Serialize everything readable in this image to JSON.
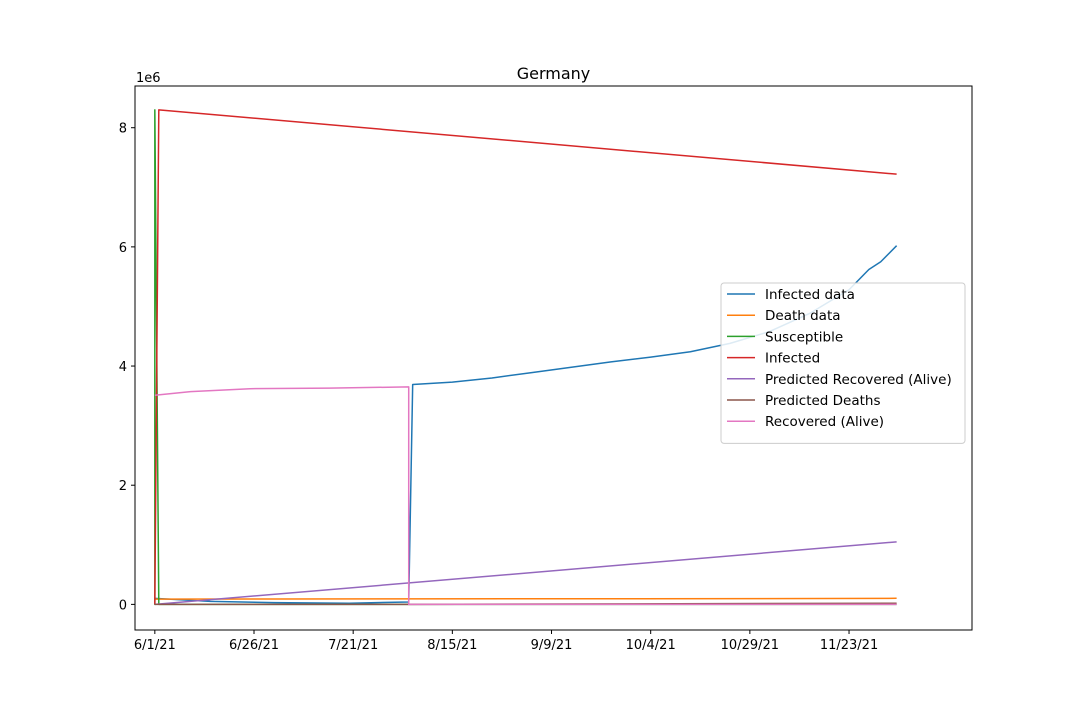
{
  "chart_data": {
    "type": "line",
    "title": "Germany",
    "xlabel": "",
    "ylabel": "",
    "y_offset_label": "1e6",
    "x_tick_labels": [
      "6/1/21",
      "6/26/21",
      "7/21/21",
      "8/15/21",
      "9/9/21",
      "10/4/21",
      "10/29/21",
      "11/23/21"
    ],
    "x_ticks": [
      "2021-06-01",
      "2021-06-26",
      "2021-07-21",
      "2021-08-15",
      "2021-09-09",
      "2021-10-04",
      "2021-10-29",
      "2021-11-23"
    ],
    "xlim": [
      "2021-05-27",
      "2021-12-24"
    ],
    "y_tick_values": [
      0,
      2,
      4,
      6,
      8
    ],
    "y_tick_labels": [
      "0",
      "2",
      "4",
      "6",
      "8"
    ],
    "ylim": [
      -0.43,
      8.7
    ],
    "y_units_scale": 1000000,
    "grid": false,
    "legend_position": "center-right",
    "series": [
      {
        "name": "Infected data",
        "color": "#1f77b4",
        "points": [
          [
            "2021-06-01",
            0.1
          ],
          [
            "2021-06-15",
            0.05
          ],
          [
            "2021-07-01",
            0.03
          ],
          [
            "2021-07-20",
            0.02
          ],
          [
            "2021-08-04",
            0.04
          ],
          [
            "2021-08-05",
            3.69
          ],
          [
            "2021-08-15",
            3.73
          ],
          [
            "2021-08-25",
            3.8
          ],
          [
            "2021-09-04",
            3.89
          ],
          [
            "2021-09-14",
            3.98
          ],
          [
            "2021-09-24",
            4.07
          ],
          [
            "2021-10-04",
            4.15
          ],
          [
            "2021-10-14",
            4.24
          ],
          [
            "2021-10-24",
            4.38
          ],
          [
            "2021-11-03",
            4.58
          ],
          [
            "2021-11-13",
            4.88
          ],
          [
            "2021-11-23",
            5.28
          ],
          [
            "2021-11-28",
            5.62
          ],
          [
            "2021-12-01",
            5.75
          ],
          [
            "2021-12-05",
            6.02
          ]
        ]
      },
      {
        "name": "Death data",
        "color": "#ff7f0e",
        "points": [
          [
            "2021-06-01",
            0.089
          ],
          [
            "2021-07-01",
            0.091
          ],
          [
            "2021-08-01",
            0.092
          ],
          [
            "2021-09-01",
            0.094
          ],
          [
            "2021-10-01",
            0.095
          ],
          [
            "2021-11-01",
            0.097
          ],
          [
            "2021-12-05",
            0.102
          ]
        ]
      },
      {
        "name": "Susceptible",
        "color": "#2ca02c",
        "points": [
          [
            "2021-06-01",
            8.3
          ],
          [
            "2021-06-01",
            0.0
          ],
          [
            "2021-06-01",
            8.3
          ],
          [
            "2021-06-02",
            0.0
          ],
          [
            "2021-12-05",
            0.0
          ]
        ]
      },
      {
        "name": "Infected",
        "color": "#d62728",
        "points": [
          [
            "2021-06-01",
            0.0
          ],
          [
            "2021-06-02",
            8.3
          ],
          [
            "2021-12-05",
            7.22
          ]
        ]
      },
      {
        "name": "Predicted Recovered (Alive)",
        "color": "#9467bd",
        "points": [
          [
            "2021-06-01",
            0.0
          ],
          [
            "2021-12-05",
            1.05
          ],
          [
            "2021-12-05",
            1.05
          ]
        ]
      },
      {
        "name": "Predicted Deaths",
        "color": "#8c564b",
        "points": [
          [
            "2021-06-01",
            0.0
          ],
          [
            "2021-08-04",
            0.0
          ],
          [
            "2021-12-05",
            0.02
          ]
        ]
      },
      {
        "name": "Recovered (Alive)",
        "color": "#e377c2",
        "points": [
          [
            "2021-06-01",
            3.51
          ],
          [
            "2021-06-10",
            3.57
          ],
          [
            "2021-06-25",
            3.62
          ],
          [
            "2021-07-15",
            3.63
          ],
          [
            "2021-08-04",
            3.65
          ],
          [
            "2021-08-04",
            0.0
          ],
          [
            "2021-08-05",
            0.0
          ],
          [
            "2021-12-05",
            0.0
          ]
        ]
      }
    ]
  }
}
